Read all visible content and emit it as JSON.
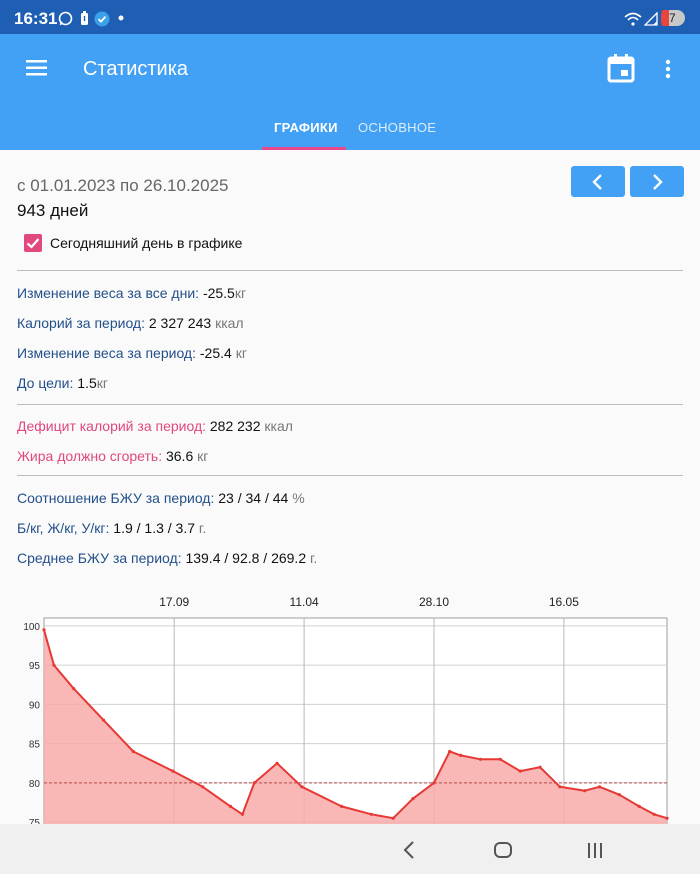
{
  "status": {
    "time": "16:31",
    "battery": "7"
  },
  "appbar": {
    "title": "Статистика"
  },
  "tabs": [
    {
      "label": "ГРАФИКИ"
    },
    {
      "label": "ОСНОВНОЕ"
    }
  ],
  "period": {
    "range": "с 01.01.2023 по 26.10.2025",
    "days": "943 дней"
  },
  "checkbox": {
    "label": "Сегодняшний день в графике",
    "checked": true
  },
  "stats": [
    {
      "label": "Изменение веса за все дни:",
      "value": "-25.5",
      "unit": "кг"
    },
    {
      "label": "Калорий за период:",
      "value": "2 327 243",
      "unit": "ккал"
    },
    {
      "label": "Изменение веса за период:",
      "value": "-25.4",
      "unit": "кг"
    },
    {
      "label": "До цели:",
      "value": "1.5",
      "unit": "кг"
    },
    {
      "label": "Дефицит калорий за период:",
      "value": "282 232",
      "unit": "ккал"
    },
    {
      "label": "Жира должно сгореть:",
      "value": "36.6",
      "unit": "кг"
    },
    {
      "label": "Соотношение БЖУ за период:",
      "value": "23 / 34 / 44",
      "unit": "%"
    },
    {
      "label": "Б/кг, Ж/кг, У/кг:",
      "value": "1.9 / 1.3 / 3.7",
      "unit": "г."
    },
    {
      "label": "Среднее БЖУ за период:",
      "value": "139.4 / 92.8 / 269.2",
      "unit": "г."
    }
  ],
  "colors": {
    "accent_pink": "#e0487f",
    "appbar_blue": "#42a1f4",
    "label_blue": "#23508a",
    "line_red": "#e53935"
  },
  "chart_data": {
    "type": "area",
    "x_tick_labels": [
      "17.09",
      "11.04",
      "28.10",
      "16.05"
    ],
    "y_tick_labels": [
      "100",
      "95",
      "90",
      "85",
      "80",
      "75"
    ],
    "ylim": [
      74,
      101
    ],
    "goal_line": 80,
    "x": [
      0,
      10,
      30,
      60,
      90,
      130,
      160,
      188,
      200,
      212,
      235,
      260,
      300,
      330,
      352,
      372,
      393,
      409,
      420,
      440,
      460,
      480,
      500,
      520,
      545,
      560,
      580,
      600,
      615,
      628
    ],
    "values": [
      99.5,
      95,
      92,
      88,
      84,
      81.5,
      79.5,
      77,
      76,
      80,
      82.5,
      79.5,
      77,
      76,
      75.5,
      78,
      80,
      84,
      83.5,
      83,
      83,
      81.5,
      82,
      79.5,
      79,
      79.5,
      78.5,
      77,
      76,
      75.5
    ]
  }
}
